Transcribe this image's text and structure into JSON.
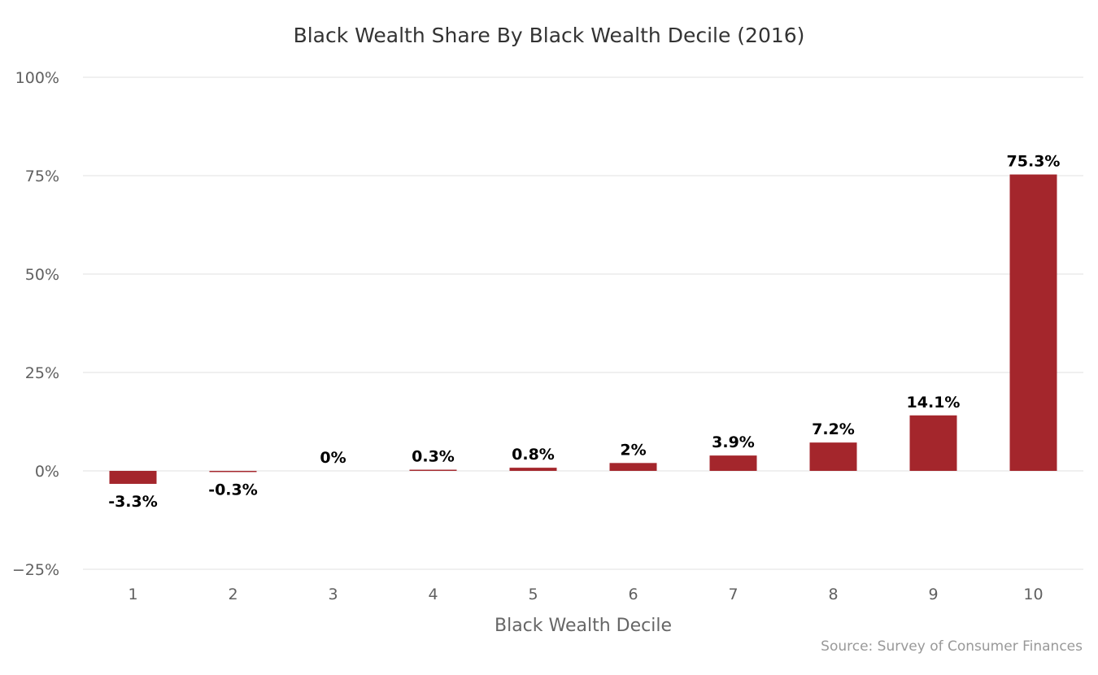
{
  "chart_data": {
    "type": "bar",
    "title": "Black Wealth Share By Black Wealth Decile (2016)",
    "xlabel": "Black Wealth Decile",
    "ylabel": "",
    "categories": [
      "1",
      "2",
      "3",
      "4",
      "5",
      "6",
      "7",
      "8",
      "9",
      "10"
    ],
    "values": [
      -3.3,
      -0.3,
      0,
      0.3,
      0.8,
      2,
      3.9,
      7.2,
      14.1,
      75.3
    ],
    "data_labels": [
      "-3.3%",
      "-0.3%",
      "0%",
      "0.3%",
      "0.8%",
      "2%",
      "3.9%",
      "7.2%",
      "14.1%",
      "75.3%"
    ],
    "ylim": [
      -25,
      100
    ],
    "yticks": [
      -25,
      0,
      25,
      50,
      75,
      100
    ],
    "ytick_labels": [
      "−25%",
      "0%",
      "25%",
      "50%",
      "75%",
      "100%"
    ],
    "bar_color": "#a4262c",
    "grid": true,
    "legend": "none",
    "source": "Source: Survey of Consumer Finances"
  }
}
